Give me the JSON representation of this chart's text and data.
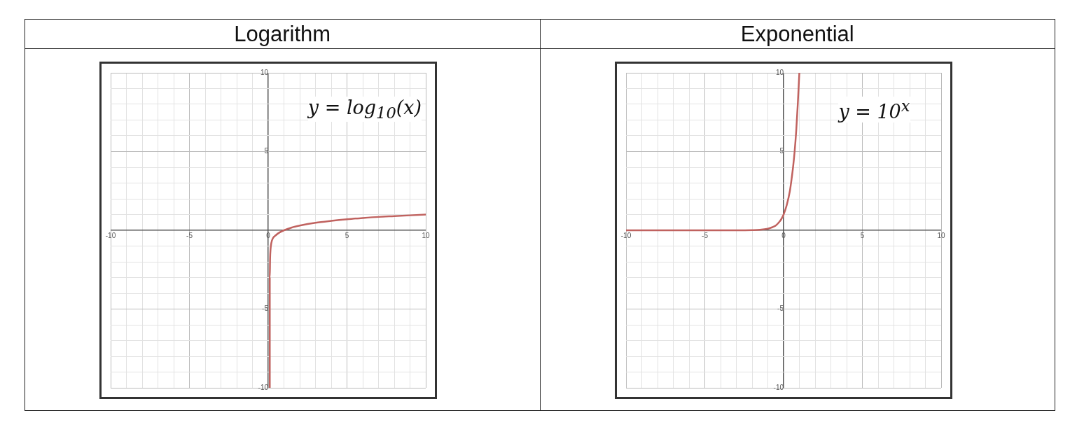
{
  "chart_data": [
    {
      "type": "line",
      "title": "Logarithm",
      "annotations": [
        "y = log$_{10}$(x)"
      ],
      "color": "#c0625f",
      "marker": "none",
      "line_style": "solid",
      "grid": true,
      "x": [
        0.1,
        0.1,
        0.12,
        0.15,
        0.2,
        0.3,
        0.5,
        0.7,
        1,
        1.5,
        2,
        3,
        4,
        5,
        6,
        7,
        8,
        9,
        10
      ],
      "values": [
        -10,
        -3,
        -1.8,
        -1.2,
        -0.8,
        -0.5,
        -0.3,
        -0.15,
        0,
        0.18,
        0.3,
        0.48,
        0.6,
        0.7,
        0.78,
        0.85,
        0.9,
        0.95,
        1
      ],
      "xlim": [
        -10,
        10
      ],
      "ylim": [
        -10,
        10
      ],
      "xticks": [
        -10,
        {
          "value": -9,
          "label": null
        },
        {
          "value": -8,
          "label": null
        },
        {
          "value": -7,
          "label": null
        },
        {
          "value": -6,
          "label": null
        },
        -5,
        {
          "value": -4,
          "label": null
        },
        {
          "value": -3,
          "label": null
        },
        {
          "value": -2,
          "label": null
        },
        {
          "value": -1,
          "label": null
        },
        0,
        {
          "value": 1,
          "label": null
        },
        {
          "value": 2,
          "label": null
        },
        {
          "value": 3,
          "label": null
        },
        {
          "value": 4,
          "label": null
        },
        5,
        {
          "value": 6,
          "label": null
        },
        {
          "value": 7,
          "label": null
        },
        {
          "value": 8,
          "label": null
        },
        {
          "value": 9,
          "label": null
        },
        10
      ],
      "yticks": [
        -10,
        {
          "value": -9,
          "label": null
        },
        {
          "value": -8,
          "label": null
        },
        {
          "value": -7,
          "label": null
        },
        {
          "value": -6,
          "label": null
        },
        -5,
        {
          "value": -4,
          "label": null
        },
        {
          "value": -3,
          "label": null
        },
        {
          "value": -2,
          "label": null
        },
        {
          "value": -1,
          "label": null
        },
        {
          "value": 0,
          "label": null
        },
        {
          "value": 1,
          "label": null
        },
        {
          "value": 2,
          "label": null
        },
        {
          "value": 3,
          "label": null
        },
        {
          "value": 4,
          "label": null
        },
        5,
        {
          "value": 6,
          "label": null
        },
        {
          "value": 7,
          "label": null
        },
        {
          "value": 8,
          "label": null
        },
        {
          "value": 9,
          "label": null
        },
        10
      ]
    },
    {
      "type": "line",
      "title": "Exponential",
      "annotations": [
        "y = 10$^{x}$"
      ],
      "color": "#c0625f",
      "marker": "none",
      "line_style": "solid",
      "grid": true,
      "x": [
        -10,
        -6,
        -3,
        -2,
        -1.5,
        -1,
        -0.7,
        -0.5,
        -0.3,
        -0.15,
        0,
        0.2,
        0.4,
        0.5,
        0.6,
        0.7,
        0.8,
        0.9,
        1
      ],
      "values": [
        0,
        0,
        0,
        0.01,
        0.03,
        0.1,
        0.2,
        0.3,
        0.5,
        0.7,
        1,
        1.6,
        2.5,
        3.2,
        4,
        5,
        6.3,
        8,
        10
      ],
      "xlim": [
        -10,
        10
      ],
      "ylim": [
        -10,
        10
      ],
      "xticks": [
        -10,
        {
          "value": -9,
          "label": null
        },
        {
          "value": -8,
          "label": null
        },
        {
          "value": -7,
          "label": null
        },
        {
          "value": -6,
          "label": null
        },
        -5,
        {
          "value": -4,
          "label": null
        },
        {
          "value": -3,
          "label": null
        },
        {
          "value": -2,
          "label": null
        },
        {
          "value": -1,
          "label": null
        },
        0,
        {
          "value": 1,
          "label": null
        },
        {
          "value": 2,
          "label": null
        },
        {
          "value": 3,
          "label": null
        },
        {
          "value": 4,
          "label": null
        },
        5,
        {
          "value": 6,
          "label": null
        },
        {
          "value": 7,
          "label": null
        },
        {
          "value": 8,
          "label": null
        },
        {
          "value": 9,
          "label": null
        },
        10
      ],
      "yticks": [
        -10,
        {
          "value": -9,
          "label": null
        },
        {
          "value": -8,
          "label": null
        },
        {
          "value": -7,
          "label": null
        },
        {
          "value": -6,
          "label": null
        },
        -5,
        {
          "value": -4,
          "label": null
        },
        {
          "value": -3,
          "label": null
        },
        {
          "value": -2,
          "label": null
        },
        {
          "value": -1,
          "label": null
        },
        {
          "value": 0,
          "label": null
        },
        {
          "value": 1,
          "label": null
        },
        {
          "value": 2,
          "label": null
        },
        {
          "value": 3,
          "label": null
        },
        {
          "value": 4,
          "label": null
        },
        5,
        {
          "value": 6,
          "label": null
        },
        {
          "value": 7,
          "label": null
        },
        {
          "value": 8,
          "label": null
        },
        {
          "value": 9,
          "label": null
        },
        10
      ]
    }
  ]
}
